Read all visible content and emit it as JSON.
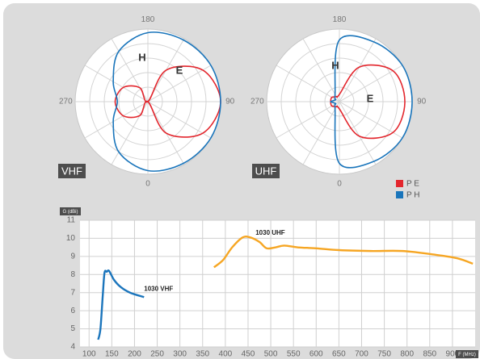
{
  "chart_data": [
    {
      "type": "polar",
      "title": "VHF",
      "angles": [
        0,
        30,
        60,
        90,
        120,
        150,
        180,
        210,
        240,
        270,
        300,
        330
      ],
      "xticks": [
        180,
        90,
        0,
        270
      ],
      "series": [
        {
          "name": "E",
          "color": "#e3262d",
          "values": [
            0,
            0.5,
            0.87,
            1,
            0.87,
            0.5,
            0,
            0.22,
            0.39,
            0.45,
            0.39,
            0.22
          ]
        },
        {
          "name": "H",
          "color": "#1a75bb",
          "values": [
            0.95,
            0.98,
            1,
            1,
            1,
            0.98,
            0.95,
            0.8,
            0.55,
            0.42,
            0.55,
            0.8
          ]
        }
      ]
    },
    {
      "type": "polar",
      "title": "UHF",
      "angles": [
        0,
        30,
        60,
        90,
        120,
        150,
        180,
        210,
        240,
        270,
        300,
        330
      ],
      "xticks": [
        180,
        90,
        0,
        270
      ],
      "legend": [
        "P E",
        "P H"
      ],
      "series": [
        {
          "name": "E",
          "color": "#e3262d",
          "values": [
            0.1,
            0.55,
            0.85,
            0.9,
            0.85,
            0.55,
            0.1,
            0.08,
            0.12,
            0.12,
            0.12,
            0.08
          ]
        },
        {
          "name": "H",
          "color": "#1a75bb",
          "values": [
            0.85,
            0.95,
            1,
            1,
            1,
            0.95,
            0.85,
            0.12,
            0.06,
            0.12,
            0.06,
            0.12
          ]
        }
      ]
    },
    {
      "type": "line",
      "ylabel": "G (dBi)",
      "xlabel": "F (MHz)",
      "xlim": [
        80,
        950
      ],
      "ylim": [
        4,
        11
      ],
      "xticks": [
        100,
        150,
        200,
        250,
        300,
        350,
        400,
        450,
        500,
        550,
        600,
        650,
        700,
        750,
        800,
        850,
        900
      ],
      "yticks": [
        4,
        5,
        6,
        7,
        8,
        9,
        10,
        11
      ],
      "grid": true,
      "series": [
        {
          "name": "1030 VHF",
          "color": "#1b75bc",
          "x": [
            120,
            125,
            130,
            134,
            139,
            144,
            155,
            170,
            190,
            221
          ],
          "values": [
            4.4,
            5.0,
            6.8,
            8.1,
            8.15,
            8.2,
            7.7,
            7.3,
            7.0,
            6.75
          ]
        },
        {
          "name": "1030 UHF",
          "color": "#f6a623",
          "x": [
            375,
            395,
            415,
            438,
            455,
            475,
            491,
            510,
            530,
            560,
            600,
            650,
            720,
            790,
            860,
            910,
            945
          ],
          "values": [
            8.4,
            8.8,
            9.5,
            10.05,
            10.05,
            9.8,
            9.45,
            9.5,
            9.6,
            9.5,
            9.45,
            9.35,
            9.3,
            9.3,
            9.1,
            8.9,
            8.6
          ]
        }
      ]
    }
  ]
}
